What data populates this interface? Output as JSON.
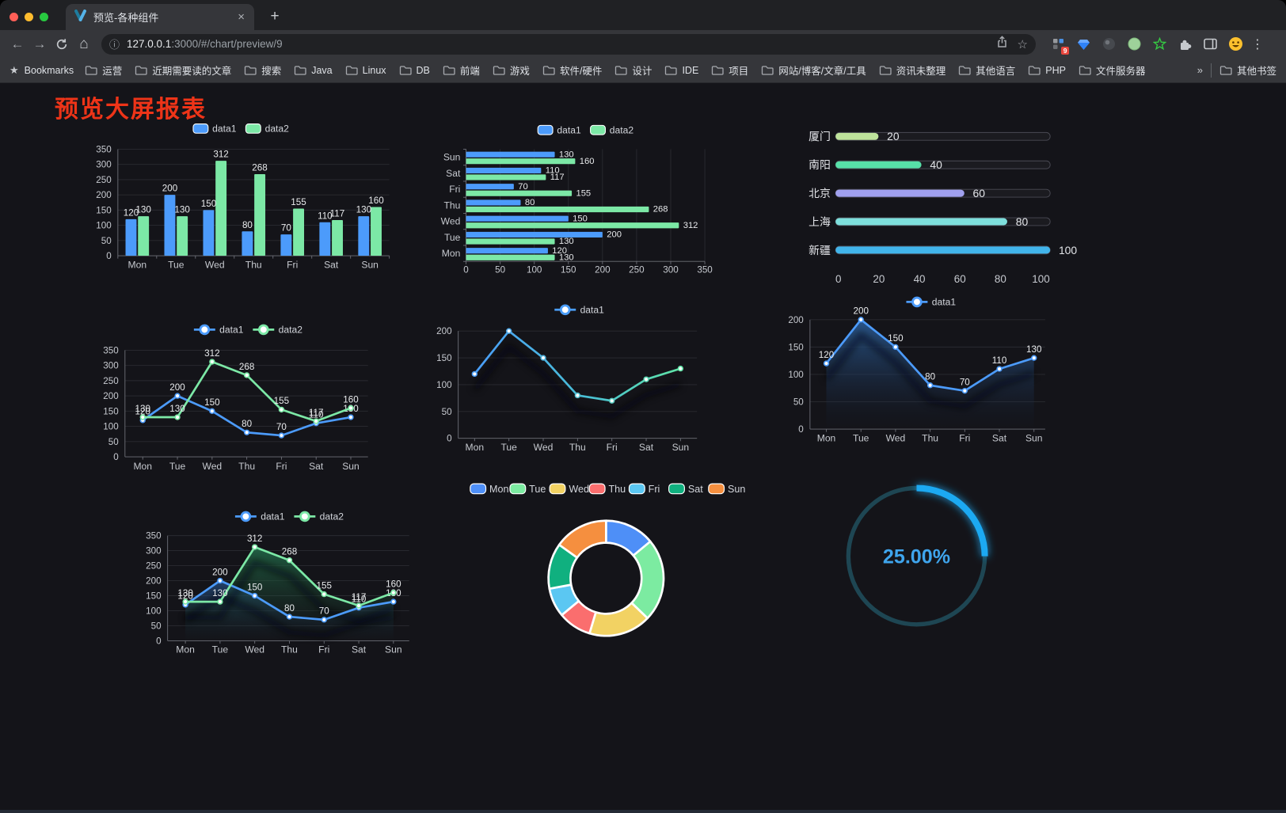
{
  "window": {
    "tab_title": "预览-各种组件",
    "close_label": "×",
    "new_tab_label": "+",
    "url": {
      "host": "127.0.0.1",
      "rest": ":3000/#/chart/preview/9"
    },
    "extension_badge": "9",
    "icons": {
      "back": "←",
      "forward": "→",
      "home": "⌂",
      "info": "ⓘ",
      "star": "☆",
      "menu": "⋮",
      "bookmarks_star": "★"
    }
  },
  "bookmarks_bar": {
    "root_label": "Bookmarks",
    "folders": [
      "运营",
      "近期需要读的文章",
      "搜索",
      "Java",
      "Linux",
      "DB",
      "前端",
      "游戏",
      "软件/硬件",
      "设计",
      "IDE",
      "项目",
      "网站/博客/文章/工具",
      "资讯未整理",
      "其他语言",
      "PHP",
      "文件服务器"
    ],
    "overflow_chevron": "»",
    "other_bookmarks": "其他书签"
  },
  "page": {
    "title": "预览大屏报表",
    "title_color": "#EE3418",
    "background": "#141419"
  },
  "chart_data": [
    {
      "key": "grouped-bar",
      "type": "bar",
      "categories": [
        "Mon",
        "Tue",
        "Wed",
        "Thu",
        "Fri",
        "Sat",
        "Sun"
      ],
      "series": [
        {
          "name": "data1",
          "color": "#4C9BFB",
          "values": [
            120,
            200,
            150,
            80,
            70,
            110,
            130
          ]
        },
        {
          "name": "data2",
          "color": "#7CE8A6",
          "values": [
            130,
            130,
            312,
            268,
            155,
            117,
            160
          ]
        }
      ],
      "ylim": [
        0,
        350
      ],
      "yticks": [
        0,
        50,
        100,
        150,
        200,
        250,
        300,
        350
      ],
      "show_labels": true
    },
    {
      "key": "horizontal-bar",
      "type": "bar-horizontal",
      "categories": [
        "Mon",
        "Tue",
        "Wed",
        "Thu",
        "Fri",
        "Sat",
        "Sun"
      ],
      "row_order_top_to_bottom": [
        "Sun",
        "Sat",
        "Fri",
        "Thu",
        "Wed",
        "Tue",
        "Mon"
      ],
      "series": [
        {
          "name": "data1",
          "color": "#4C9BFB",
          "values": [
            120,
            200,
            150,
            80,
            70,
            110,
            130
          ]
        },
        {
          "name": "data2",
          "color": "#7CE8A6",
          "values": [
            130,
            130,
            312,
            268,
            155,
            117,
            160
          ]
        }
      ],
      "xlim": [
        0,
        350
      ],
      "xticks": [
        0,
        50,
        100,
        150,
        200,
        250,
        300,
        350
      ],
      "show_labels": true
    },
    {
      "key": "progress-list",
      "type": "progress",
      "max": 100,
      "xticks": [
        0,
        20,
        40,
        60,
        80,
        100
      ],
      "rows": [
        {
          "label": "厦门",
          "value": 20,
          "color": "#BEE39B"
        },
        {
          "label": "南阳",
          "value": 40,
          "color": "#57E0A8"
        },
        {
          "label": "北京",
          "value": 60,
          "color": "#A0A0EE"
        },
        {
          "label": "上海",
          "value": 80,
          "color": "#7EDFDC"
        },
        {
          "label": "新疆",
          "value": 100,
          "color": "#41B4EA"
        }
      ]
    },
    {
      "key": "two-line",
      "type": "line",
      "categories": [
        "Mon",
        "Tue",
        "Wed",
        "Thu",
        "Fri",
        "Sat",
        "Sun"
      ],
      "series": [
        {
          "name": "data1",
          "color": "#4C9BFB",
          "values": [
            120,
            200,
            150,
            80,
            70,
            110,
            130
          ]
        },
        {
          "name": "data2",
          "color": "#7CE8A6",
          "values": [
            130,
            130,
            312,
            268,
            155,
            117,
            160
          ]
        }
      ],
      "ylim": [
        0,
        350
      ],
      "yticks": [
        0,
        50,
        100,
        150,
        200,
        250,
        300,
        350
      ],
      "show_labels": true,
      "shadow": false
    },
    {
      "key": "gradient-line",
      "type": "line",
      "categories": [
        "Mon",
        "Tue",
        "Wed",
        "Thu",
        "Fri",
        "Sat",
        "Sun"
      ],
      "series": [
        {
          "name": "data1",
          "color": "#4A9DF8",
          "gradient": [
            "#4A9DF8",
            "#49C0D4",
            "#5FE3A6"
          ],
          "values": [
            120,
            200,
            150,
            80,
            70,
            110,
            130
          ]
        }
      ],
      "ylim": [
        0,
        200
      ],
      "yticks": [
        0,
        50,
        100,
        150,
        200
      ],
      "show_labels": false,
      "shadow": true
    },
    {
      "key": "area-line",
      "type": "line",
      "categories": [
        "Mon",
        "Tue",
        "Wed",
        "Thu",
        "Fri",
        "Sat",
        "Sun"
      ],
      "series": [
        {
          "name": "data1",
          "color": "#4C9BFB",
          "area": [
            "rgba(45,98,160,0.85)",
            "rgba(20,30,50,0.03)"
          ],
          "values": [
            120,
            200,
            150,
            80,
            70,
            110,
            130
          ]
        }
      ],
      "ylim": [
        0,
        200
      ],
      "yticks": [
        0,
        50,
        100,
        150,
        200
      ],
      "show_labels": true,
      "shadow": true
    },
    {
      "key": "two-line-area",
      "type": "line",
      "categories": [
        "Mon",
        "Tue",
        "Wed",
        "Thu",
        "Fri",
        "Sat",
        "Sun"
      ],
      "series": [
        {
          "name": "data1",
          "color": "#4C9BFB",
          "area": [
            "rgba(42,92,152,0.65)",
            "rgba(20,30,50,0.02)"
          ],
          "values": [
            120,
            200,
            150,
            80,
            70,
            110,
            130
          ]
        },
        {
          "name": "data2",
          "color": "#7CE8A6",
          "area": [
            "rgba(38,128,86,0.70)",
            "rgba(20,40,30,0.02)"
          ],
          "values": [
            130,
            130,
            312,
            268,
            155,
            117,
            160
          ]
        }
      ],
      "ylim": [
        0,
        350
      ],
      "yticks": [
        0,
        50,
        100,
        150,
        200,
        250,
        300,
        350
      ],
      "show_labels": true,
      "shadow": true
    },
    {
      "key": "donut",
      "type": "donut",
      "slices": [
        {
          "label": "Mon",
          "value": 120,
          "color": "#4E8FF7"
        },
        {
          "label": "Tue",
          "value": 200,
          "color": "#7CEBA1"
        },
        {
          "label": "Wed",
          "value": 150,
          "color": "#F2D263"
        },
        {
          "label": "Thu",
          "value": 80,
          "color": "#FA6E6E"
        },
        {
          "label": "Fri",
          "value": 70,
          "color": "#5BC7F2"
        },
        {
          "label": "Sat",
          "value": 110,
          "color": "#10B07F"
        },
        {
          "label": "Sun",
          "value": 130,
          "color": "#F58F3F"
        }
      ]
    },
    {
      "key": "gauge",
      "type": "gauge",
      "percent": 25,
      "text": "25.00%",
      "color": "#1CA9F2",
      "track_color": "#1E4653",
      "text_color": "#3FA5ED"
    }
  ]
}
